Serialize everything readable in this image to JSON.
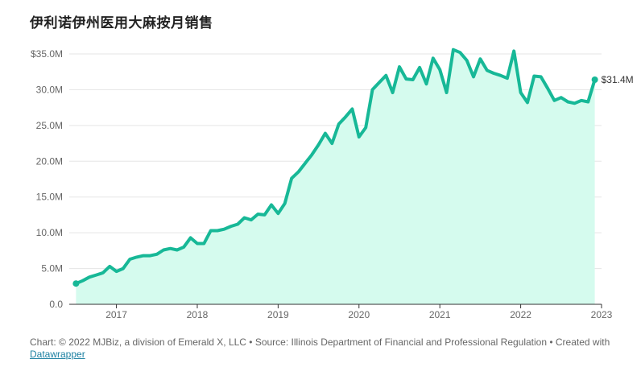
{
  "title": "伊利诺伊州医用大麻按月销售",
  "footer": {
    "text": "Chart: © 2022 MJBiz, a division of Emerald X, LLC • Source: Illinois Department of Financial and Professional Regulation • Created with",
    "link_label": "Datawrapper"
  },
  "colors": {
    "line": "#17b897",
    "area": "#d5fbee",
    "grid": "#e5e5e5",
    "axis": "#333333"
  },
  "chart_data": {
    "type": "area",
    "title": "伊利诺伊州医用大麻按月销售",
    "xlabel": "",
    "ylabel": "",
    "ylim": [
      0,
      35
    ],
    "y_unit": "M",
    "y_ticks": [
      {
        "value": 0,
        "label": "0.0"
      },
      {
        "value": 5,
        "label": "5.0M"
      },
      {
        "value": 10,
        "label": "10.0M"
      },
      {
        "value": 15,
        "label": "15.0M"
      },
      {
        "value": 20,
        "label": "20.0M"
      },
      {
        "value": 25,
        "label": "25.0M"
      },
      {
        "value": 30,
        "label": "30.0M"
      },
      {
        "value": 35,
        "label": "$35.0M"
      }
    ],
    "x_range": [
      "2016-06",
      "2023-01"
    ],
    "x_ticks": [
      "2017",
      "2018",
      "2019",
      "2020",
      "2021",
      "2022",
      "2023"
    ],
    "grid": true,
    "series": [
      {
        "x": [
          "2016-07",
          "2016-08",
          "2016-09",
          "2016-10",
          "2016-11",
          "2016-12",
          "2017-01",
          "2017-02",
          "2017-03",
          "2017-04",
          "2017-05",
          "2017-06",
          "2017-07",
          "2017-08",
          "2017-09",
          "2017-10",
          "2017-11",
          "2017-12",
          "2018-01",
          "2018-02",
          "2018-03",
          "2018-04",
          "2018-05",
          "2018-06",
          "2018-07",
          "2018-08",
          "2018-09",
          "2018-10",
          "2018-11",
          "2018-12",
          "2019-01",
          "2019-02",
          "2019-03",
          "2019-04",
          "2019-05",
          "2019-06",
          "2019-07",
          "2019-08",
          "2019-09",
          "2019-10",
          "2019-11",
          "2019-12",
          "2020-01",
          "2020-02",
          "2020-03",
          "2020-04",
          "2020-05",
          "2020-06",
          "2020-07",
          "2020-08",
          "2020-09",
          "2020-10",
          "2020-11",
          "2020-12",
          "2021-01",
          "2021-02",
          "2021-03",
          "2021-04",
          "2021-05",
          "2021-06",
          "2021-07",
          "2021-08",
          "2021-09",
          "2021-10",
          "2021-11",
          "2021-12",
          "2022-01",
          "2022-02",
          "2022-03",
          "2022-04",
          "2022-05",
          "2022-06",
          "2022-07",
          "2022-08",
          "2022-09",
          "2022-10",
          "2022-11",
          "2022-12"
        ],
        "values": [
          2.9,
          3.3,
          3.8,
          4.1,
          4.4,
          5.3,
          4.6,
          5.0,
          6.3,
          6.6,
          6.8,
          6.8,
          7.0,
          7.6,
          7.8,
          7.6,
          8.0,
          9.3,
          8.5,
          8.5,
          10.3,
          10.3,
          10.5,
          10.9,
          11.2,
          12.1,
          11.8,
          12.6,
          12.5,
          13.9,
          12.7,
          14.1,
          17.6,
          18.5,
          19.7,
          20.9,
          22.3,
          23.9,
          22.5,
          25.2,
          26.2,
          27.3,
          23.4,
          24.7,
          30.0,
          31.0,
          32.0,
          29.6,
          33.2,
          31.5,
          31.4,
          33.1,
          30.8,
          34.4,
          32.8,
          29.6,
          35.6,
          35.2,
          34.1,
          31.8,
          34.3,
          32.7,
          32.3,
          32.0,
          31.6,
          35.4,
          29.6,
          28.2,
          31.9,
          31.8,
          30.2,
          28.5,
          28.9,
          28.3,
          28.1,
          28.5,
          28.3,
          31.4
        ]
      }
    ],
    "end_label": "$31.4M"
  }
}
